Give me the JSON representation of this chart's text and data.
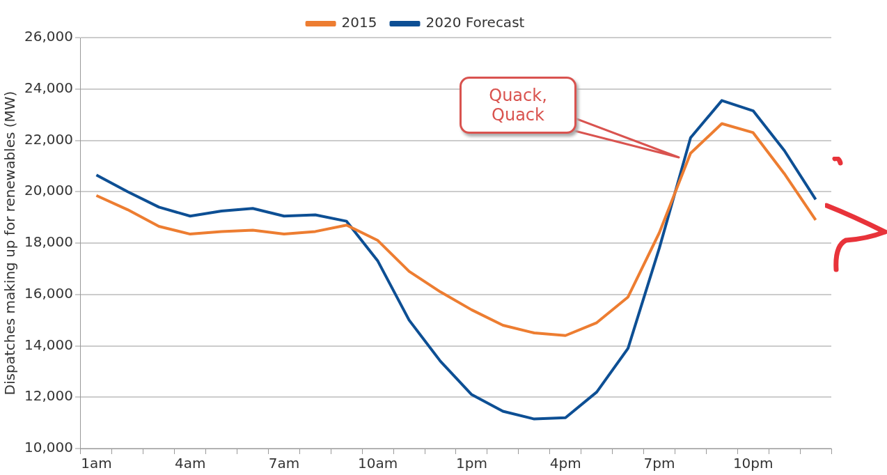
{
  "chart_data": {
    "type": "line",
    "ylabel": "Dispatches making up for renewables (MW)",
    "categories": [
      "1am",
      null,
      null,
      "4am",
      null,
      null,
      "7am",
      null,
      null,
      "10am",
      null,
      null,
      "1pm",
      null,
      null,
      "4pm",
      null,
      null,
      "7pm",
      null,
      null,
      "10pm",
      null,
      null
    ],
    "series": [
      {
        "name": "2015",
        "color": "#ed7d31",
        "values": [
          19850,
          19300,
          18650,
          18350,
          18450,
          18500,
          18350,
          18450,
          18700,
          18100,
          16900,
          16100,
          15400,
          14800,
          14500,
          14400,
          14900,
          15900,
          18400,
          21500,
          22650,
          22300,
          20700,
          18900
        ]
      },
      {
        "name": "2020 Forecast",
        "color": "#0d4f94",
        "values": [
          20650,
          20000,
          19400,
          19050,
          19250,
          19350,
          19050,
          19100,
          18850,
          17300,
          15000,
          13400,
          12100,
          11450,
          11150,
          11200,
          12200,
          13900,
          17800,
          22100,
          23550,
          23150,
          21600,
          19700
        ]
      }
    ],
    "ylim": [
      10000,
      26000
    ],
    "yticks": [
      {
        "value": 10000,
        "label": "10,000"
      },
      {
        "value": 12000,
        "label": "12,000"
      },
      {
        "value": 14000,
        "label": "14,000"
      },
      {
        "value": 16000,
        "label": "16,000"
      },
      {
        "value": 18000,
        "label": "18,000"
      },
      {
        "value": 20000,
        "label": "20,000"
      },
      {
        "value": 22000,
        "label": "22,000"
      },
      {
        "value": 24000,
        "label": "24,000"
      },
      {
        "value": 26000,
        "label": "26,000"
      }
    ],
    "grid": "y",
    "legend": "top",
    "marker": "none",
    "line_style": "solid",
    "annotations": [
      "Quack, Quack"
    ]
  }
}
